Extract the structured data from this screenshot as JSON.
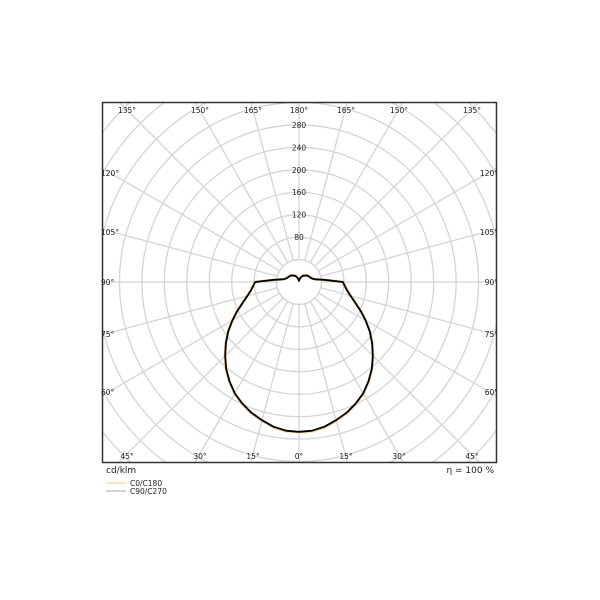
{
  "chart_data": {
    "type": "polar-line",
    "unit_label": "cd/klm",
    "efficiency_label": "η = 100 %",
    "radial_ticks": [
      80,
      120,
      160,
      200,
      240,
      280
    ],
    "radial_grid_step": 40,
    "angle_grid_step_deg": 15,
    "angle_labels": {
      "top": [
        "135°",
        "150°",
        "165°",
        "180°",
        "165°",
        "150°",
        "135°"
      ],
      "left": [
        "120°",
        "105°",
        "90°",
        "75°",
        "60°"
      ],
      "right": [
        "120°",
        "105°",
        "90°",
        "75°",
        "60°"
      ],
      "bottom": [
        "45°",
        "30°",
        "15°",
        "0°",
        "15°",
        "30°",
        "45°"
      ]
    },
    "grid": true,
    "legend_placement": "bottom-left",
    "gamma_deg": [
      0,
      5,
      10,
      15,
      20,
      25,
      30,
      35,
      40,
      45,
      50,
      55,
      60,
      65,
      70,
      75,
      80,
      85,
      90,
      95,
      100,
      105,
      110,
      115,
      120,
      125,
      130,
      135,
      140,
      145,
      150,
      155,
      160,
      165,
      170,
      175,
      180
    ],
    "series": [
      {
        "name": "C0/C180",
        "color": "#f6c48a",
        "values": [
          268,
          267,
          263,
          256,
          249,
          240,
          230,
          217,
          203,
          187,
          171,
          155,
          138,
          122,
          107,
          96,
          88,
          83,
          79,
          46,
          29,
          25,
          23,
          22,
          21,
          20,
          19,
          17,
          16,
          15,
          13,
          11,
          9,
          7,
          5,
          3,
          2
        ]
      },
      {
        "name": "C90/C270",
        "color": "#aaaaaa",
        "plot_color": "#000000",
        "values": [
          267,
          266,
          262,
          255,
          248,
          239,
          229,
          216,
          202,
          186,
          170,
          154,
          137,
          121,
          106,
          95,
          87,
          82,
          78,
          45,
          28,
          24,
          22,
          21,
          20,
          19,
          18,
          16,
          15,
          14,
          12,
          10,
          8,
          6,
          4,
          3,
          2
        ]
      }
    ]
  }
}
